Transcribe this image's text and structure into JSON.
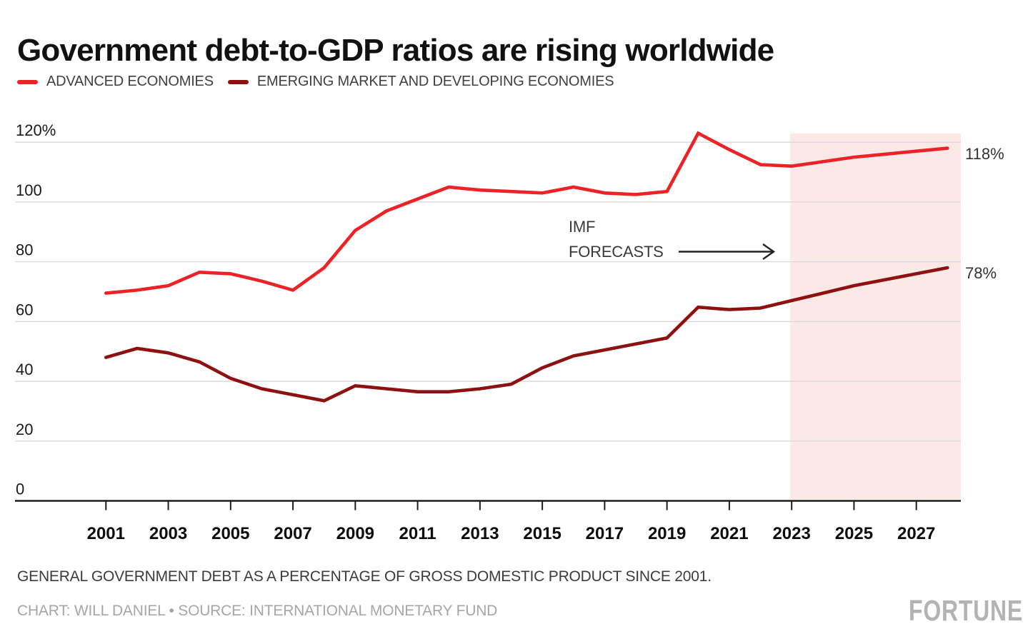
{
  "page": {
    "title": "Government debt-to-GDP ratios are rising worldwide",
    "note": "GENERAL GOVERNMENT DEBT AS A PERCENTAGE OF GROSS DOMESTIC PRODUCT SINCE 2001.",
    "credit": "CHART: WILL DANIEL • SOURCE: INTERNATIONAL MONETARY FUND",
    "brand": "FORTUNE"
  },
  "legend": [
    {
      "label": "ADVANCED ECONOMIES",
      "color": "#ed2227"
    },
    {
      "label": "EMERGING MARKET AND DEVELOPING ECONOMIES",
      "color": "#8e1010"
    }
  ],
  "colors": {
    "accent_red": "#ed2227",
    "dark_red": "#8e1010",
    "forecast_band": "#fbe9e8",
    "gridline": "#d8d8d8",
    "axis": "#1d1d1d",
    "axis_text": "#1a1a1a",
    "year_text": "#0d0d0d",
    "annotation_text": "#3a3a3a",
    "annotation_arrow": "#222222"
  },
  "chart_data": {
    "type": "line",
    "title": "Government debt-to-GDP ratios are rising worldwide",
    "xlabel": "",
    "ylabel": "General government debt as a percentage of GDP",
    "x": [
      2001,
      2002,
      2003,
      2004,
      2005,
      2006,
      2007,
      2008,
      2009,
      2010,
      2011,
      2012,
      2013,
      2014,
      2015,
      2016,
      2017,
      2018,
      2019,
      2020,
      2021,
      2022,
      2023,
      2024,
      2025,
      2026,
      2027,
      2028
    ],
    "series": [
      {
        "name": "ADVANCED ECONOMIES",
        "color": "#ed2227",
        "end_label": "118%",
        "values": [
          69.5,
          70.5,
          72,
          76.5,
          76,
          73.5,
          70.5,
          78,
          90.5,
          97,
          101,
          105,
          104,
          103.5,
          103,
          105,
          103,
          102.5,
          103.5,
          123,
          117.5,
          112.5,
          112,
          113.5,
          115,
          116,
          117,
          118
        ]
      },
      {
        "name": "EMERGING MARKET AND DEVELOPING ECONOMIES",
        "color": "#8e1010",
        "end_label": "78%",
        "values": [
          48,
          51,
          49.5,
          46.5,
          41,
          37.5,
          35.5,
          33.5,
          38.5,
          37.5,
          36.5,
          36.5,
          37.5,
          39,
          44.5,
          48.5,
          50.5,
          52.5,
          54.5,
          64.8,
          64,
          64.5,
          67,
          69.5,
          72,
          74,
          76,
          78
        ]
      }
    ],
    "ylim": [
      0,
      123
    ],
    "yticks": [
      0,
      20,
      40,
      60,
      80,
      100,
      120
    ],
    "ytick_labels": [
      "0",
      "20",
      "40",
      "60",
      "80",
      "100",
      "120%"
    ],
    "xtick_years": [
      2001,
      2003,
      2005,
      2007,
      2009,
      2011,
      2013,
      2015,
      2017,
      2019,
      2021,
      2023,
      2025,
      2027
    ],
    "grid": "horizontal",
    "legend_position": "top",
    "forecast": {
      "start_year": 2023,
      "band_color": "#fbe9e8",
      "label_line1": "IMF",
      "label_line2": "FORECASTS"
    }
  }
}
